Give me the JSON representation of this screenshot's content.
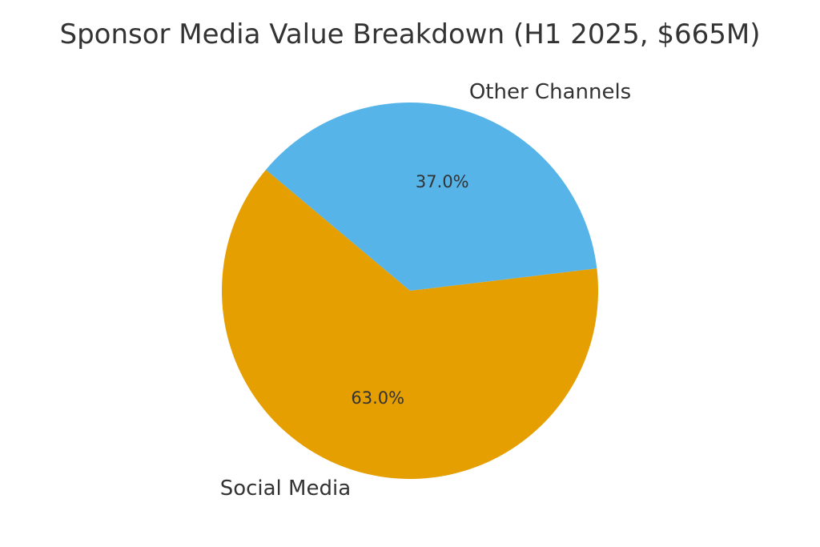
{
  "chart_data": {
    "type": "pie",
    "title": "Sponsor Media Value Breakdown (H1 2025, $665M)",
    "slices": [
      {
        "label": "Social Media",
        "value": 63.0,
        "pct_label": "63.0%",
        "color": "#E69F00"
      },
      {
        "label": "Other Channels",
        "value": 37.0,
        "pct_label": "37.0%",
        "color": "#56B4E9"
      }
    ],
    "legend": "none"
  }
}
